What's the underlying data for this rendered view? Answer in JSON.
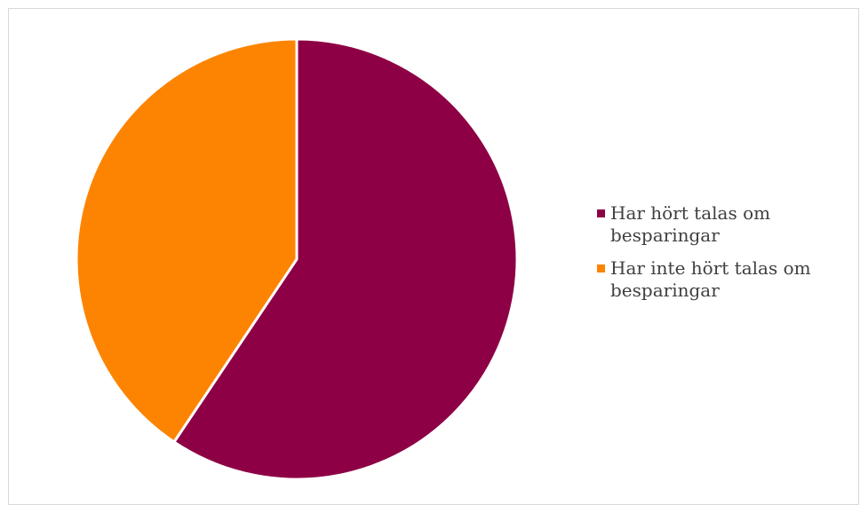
{
  "chart_data": {
    "type": "pie",
    "title": "",
    "slices": [
      {
        "label": "Har hört talas om besparingar",
        "value": 59.4,
        "color": "#8e0045"
      },
      {
        "label": "Har inte hört talas om besparingar",
        "value": 40.6,
        "color": "#fd8400"
      }
    ],
    "start_angle_deg": 0,
    "direction": "clockwise",
    "legend_position": "right"
  }
}
